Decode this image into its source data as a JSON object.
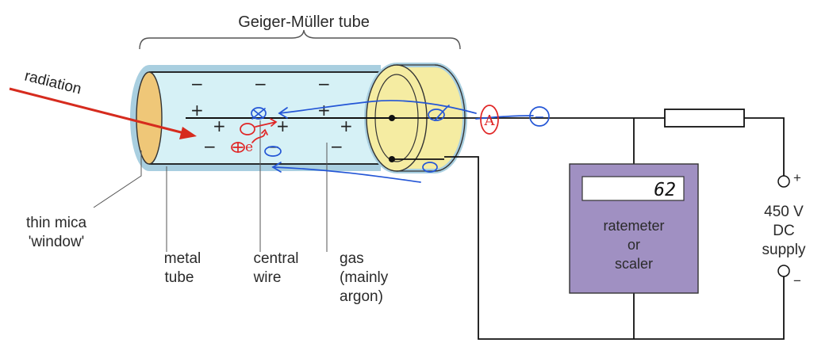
{
  "diagram": {
    "title": "Geiger-Müller tube",
    "radiation_label": "radiation",
    "labels": {
      "window_line1": "thin mica",
      "window_line2": "'window'",
      "metal_line1": "metal",
      "metal_line2": "tube",
      "wire_line1": "central",
      "wire_line2": "wire",
      "gas_line1": "gas",
      "gas_line2": "(mainly",
      "gas_line3": "argon)"
    },
    "meter": {
      "display_value": "62",
      "line1": "ratemeter",
      "line2": "or",
      "line3": "scaler"
    },
    "supply": {
      "plus": "+",
      "line1": "450 V",
      "line2": "DC",
      "line3": "supply",
      "minus": "−"
    },
    "ion_signs": {
      "minus": "−",
      "plus": "+"
    },
    "annotations": {
      "circled_a": "A",
      "circled_minus": "−",
      "electron": "e"
    },
    "colors": {
      "tube_outer": "#a9cfe0",
      "tube_inner": "#d6f1f6",
      "cap": "#f5eca2",
      "window": "#efc778",
      "arrow": "#d62b1e",
      "meter_body": "#a090c2",
      "pen_blue": "#2456d6",
      "pen_red": "#e02525"
    }
  }
}
